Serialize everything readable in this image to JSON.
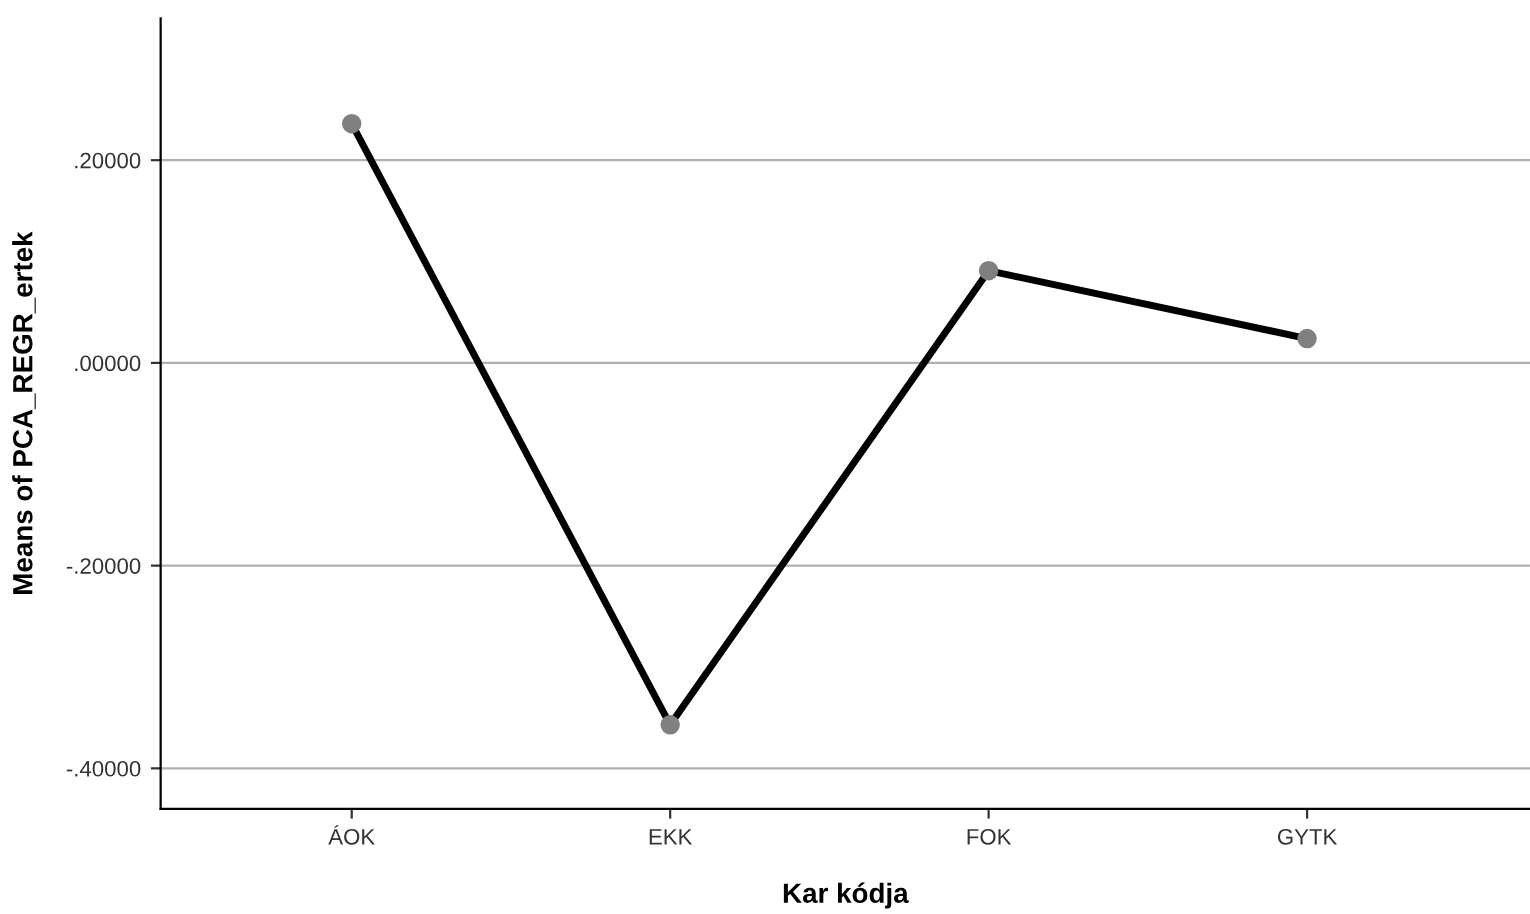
{
  "chart_data": {
    "type": "line",
    "xlabel": "Kar kódja",
    "ylabel": "Means of PCA_REGR_ertek",
    "categories": [
      "ÁOK",
      "EKK",
      "FOK",
      "GYTK"
    ],
    "series": [
      {
        "color": "#000000",
        "values": [
          0.236,
          -0.357,
          0.091,
          0.024
        ]
      }
    ],
    "ylim": [
      -0.44,
      0.34
    ],
    "yticks": [
      {
        "value": -0.4,
        "label": "-.40000"
      },
      {
        "value": -0.2,
        "label": "-.20000"
      },
      {
        "value": 0,
        "label": ".00000"
      },
      {
        "value": 0.2,
        "label": ".20000"
      }
    ],
    "grid": "y",
    "marker": "circle",
    "line_style": "solid"
  }
}
